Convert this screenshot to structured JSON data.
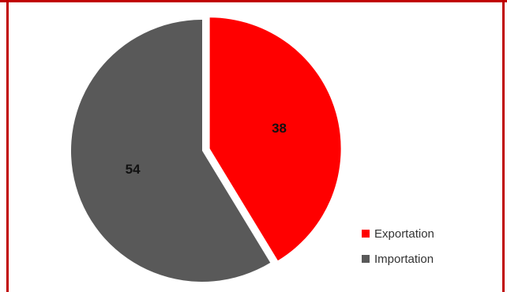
{
  "chart_data": {
    "type": "pie",
    "slices": [
      {
        "label": "Exportation",
        "value": 38,
        "color": "#ff0000"
      },
      {
        "label": "Importation",
        "value": 54,
        "color": "#595959"
      }
    ],
    "data_labels": [
      "38",
      "54"
    ],
    "legend": {
      "position": "bottom-right",
      "items": [
        "Exportation",
        "Importation"
      ]
    },
    "exploded_slice": "Exportation"
  },
  "frame": {
    "color": "#c00000"
  }
}
